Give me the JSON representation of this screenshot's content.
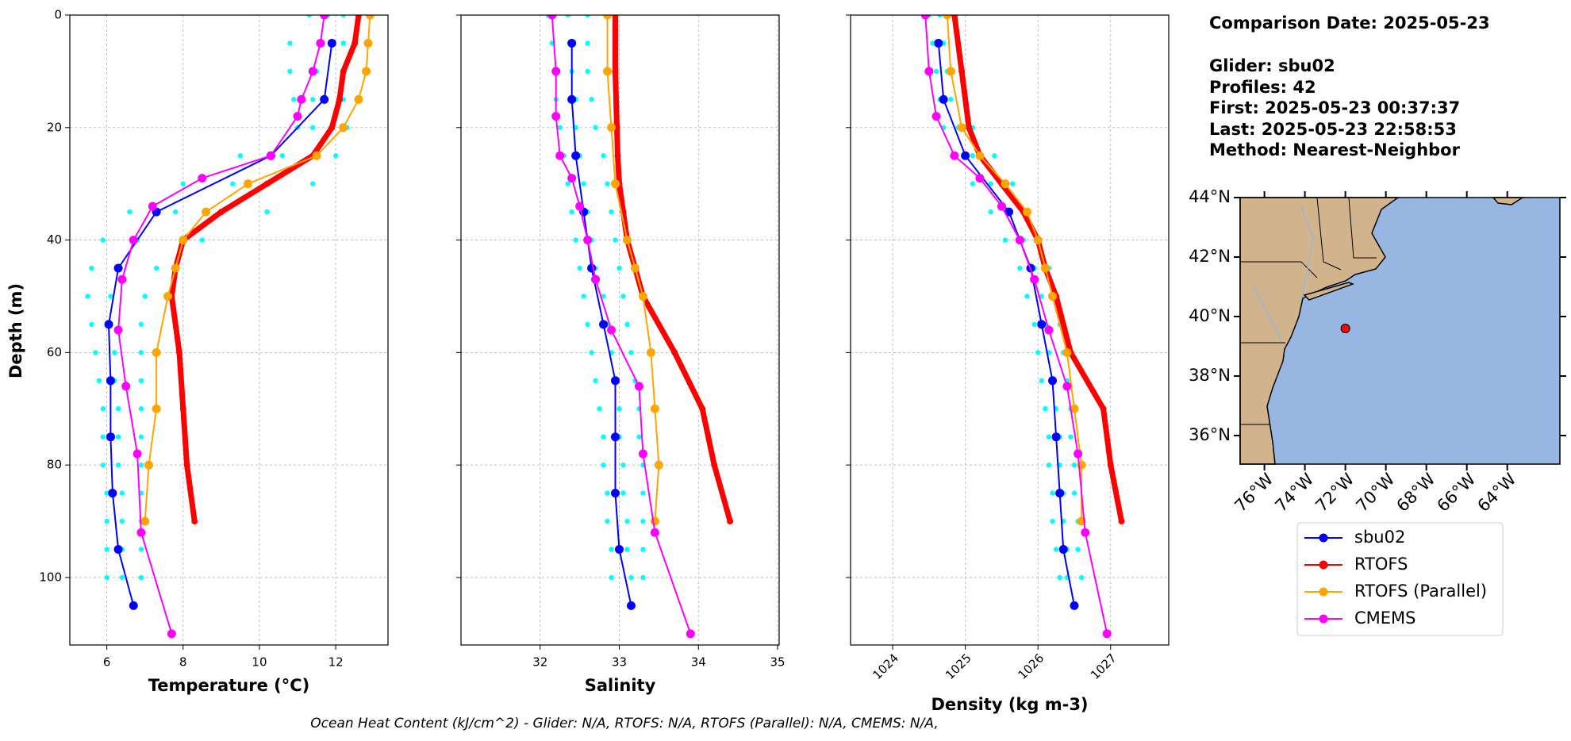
{
  "chart_data": [
    {
      "type": "profile",
      "xlabel": "Temperature (°C)",
      "ylabel": "Depth (m)",
      "xlim": [
        5.03,
        13.37
      ],
      "xticks": [
        6,
        8,
        10,
        12
      ],
      "ylim": [
        112,
        0
      ],
      "yticks": [
        0,
        20,
        40,
        60,
        80,
        100
      ],
      "grid": true,
      "profiles": {
        "color": "#00ffff",
        "depth": [
          0,
          5,
          10,
          15,
          20,
          25,
          30,
          35,
          40,
          45,
          50,
          55,
          60,
          65,
          70,
          75,
          80,
          85,
          90,
          95,
          100
        ],
        "values": [
          [
            11.3,
            10.8,
            10.8,
            10.9,
            11.0,
            9.5,
            8.0,
            6.6,
            5.9,
            5.6,
            5.5,
            5.6,
            5.7,
            5.8,
            5.9,
            5.9,
            5.9,
            6.0,
            6.0,
            6.0,
            6.0
          ],
          [
            11.8,
            11.6,
            11.5,
            11.4,
            11.4,
            10.6,
            9.3,
            7.8,
            6.8,
            6.3,
            6.1,
            6.1,
            6.2,
            6.2,
            6.3,
            6.3,
            6.3,
            6.4,
            6.4,
            6.4,
            6.4
          ],
          [
            12.2,
            12.2,
            12.2,
            12.2,
            12.3,
            12.0,
            11.4,
            10.2,
            8.5,
            7.3,
            7.0,
            6.9,
            6.9,
            6.9,
            6.9,
            6.9,
            6.9,
            6.9,
            6.9,
            6.9,
            6.9
          ]
        ]
      },
      "series": [
        {
          "name": "sbu02",
          "color": "#0000ff",
          "depth": [
            5,
            15,
            25,
            35,
            45,
            55,
            65,
            75,
            85,
            95,
            105
          ],
          "values": [
            11.9,
            11.7,
            10.3,
            7.3,
            6.3,
            6.05,
            6.1,
            6.1,
            6.15,
            6.3,
            6.7
          ]
        },
        {
          "name": "RTOFS",
          "color": "#ff0000",
          "depth": [
            0,
            5,
            10,
            15,
            20,
            25,
            30,
            35,
            40,
            45,
            50,
            60,
            70,
            80,
            90
          ],
          "values": [
            12.6,
            12.5,
            12.2,
            12.1,
            11.9,
            11.4,
            10.2,
            9.0,
            8.0,
            7.8,
            7.7,
            7.9,
            8.0,
            8.1,
            8.3
          ]
        },
        {
          "name": "RTOFS (Parallel)",
          "color": "#ffa500",
          "depth": [
            0,
            5,
            10,
            15,
            20,
            25,
            30,
            35,
            40,
            45,
            50,
            60,
            70,
            80,
            90
          ],
          "values": [
            12.9,
            12.85,
            12.8,
            12.6,
            12.2,
            11.5,
            9.7,
            8.6,
            8.0,
            7.8,
            7.6,
            7.3,
            7.3,
            7.1,
            7.0
          ]
        },
        {
          "name": "CMEMS",
          "color": "#ff00ff",
          "depth": [
            0,
            5,
            10,
            15,
            18,
            25,
            29,
            34,
            40,
            47,
            56,
            66,
            78,
            92,
            110
          ],
          "values": [
            11.7,
            11.6,
            11.4,
            11.1,
            11.0,
            10.3,
            8.5,
            7.2,
            6.7,
            6.4,
            6.3,
            6.5,
            6.8,
            6.9,
            7.7
          ]
        }
      ]
    },
    {
      "type": "profile",
      "xlabel": "Salinity",
      "xlim": [
        31.0,
        35.02
      ],
      "xticks": [
        32,
        33,
        34,
        35
      ],
      "ylim": [
        112,
        0
      ],
      "yticks": [
        0,
        20,
        40,
        60,
        80,
        100
      ],
      "grid": true,
      "profiles": {
        "color": "#00ffff",
        "depth": [
          0,
          5,
          10,
          15,
          20,
          25,
          30,
          35,
          40,
          45,
          50,
          55,
          60,
          65,
          70,
          75,
          80,
          85,
          90,
          95,
          100
        ],
        "values": [
          [
            32.1,
            32.15,
            32.2,
            32.2,
            32.25,
            32.3,
            32.35,
            32.4,
            32.45,
            32.5,
            32.55,
            32.6,
            32.65,
            32.7,
            32.75,
            32.8,
            32.8,
            32.85,
            32.85,
            32.9,
            32.9
          ],
          [
            32.35,
            32.4,
            32.4,
            32.45,
            32.45,
            32.5,
            32.55,
            32.6,
            32.65,
            32.7,
            32.8,
            32.85,
            32.9,
            32.95,
            33.0,
            33.0,
            33.05,
            33.05,
            33.1,
            33.1,
            33.15
          ],
          [
            32.6,
            32.6,
            32.6,
            32.65,
            32.7,
            32.8,
            32.85,
            32.9,
            32.95,
            33.0,
            33.05,
            33.1,
            33.15,
            33.2,
            33.25,
            33.25,
            33.3,
            33.3,
            33.3,
            33.3,
            33.3
          ]
        ]
      },
      "series": [
        {
          "name": "sbu02",
          "color": "#0000ff",
          "depth": [
            5,
            15,
            25,
            35,
            45,
            55,
            65,
            75,
            85,
            95,
            105
          ],
          "values": [
            32.4,
            32.4,
            32.45,
            32.55,
            32.65,
            32.8,
            32.95,
            32.95,
            32.95,
            33.0,
            33.15
          ]
        },
        {
          "name": "RTOFS",
          "color": "#ff0000",
          "depth": [
            0,
            10,
            20,
            25,
            30,
            35,
            40,
            45,
            50,
            60,
            70,
            80,
            90
          ],
          "values": [
            32.95,
            32.95,
            32.97,
            32.98,
            33.0,
            33.05,
            33.1,
            33.2,
            33.3,
            33.7,
            34.05,
            34.2,
            34.4
          ]
        },
        {
          "name": "RTOFS (Parallel)",
          "color": "#ffa500",
          "depth": [
            0,
            10,
            20,
            30,
            40,
            45,
            50,
            60,
            70,
            80,
            90
          ],
          "values": [
            32.85,
            32.85,
            32.9,
            32.95,
            33.1,
            33.2,
            33.3,
            33.4,
            33.45,
            33.5,
            33.45
          ]
        },
        {
          "name": "CMEMS",
          "color": "#ff00ff",
          "depth": [
            0,
            10,
            18,
            25,
            29,
            34,
            40,
            47,
            56,
            66,
            78,
            92,
            110
          ],
          "values": [
            32.15,
            32.2,
            32.2,
            32.25,
            32.4,
            32.5,
            32.6,
            32.7,
            32.9,
            33.25,
            33.3,
            33.45,
            33.9
          ]
        }
      ]
    },
    {
      "type": "profile",
      "xlabel": "Density (kg m-3)",
      "xtick_rotation": 45,
      "xlim": [
        1023.42,
        1027.8
      ],
      "xticks": [
        1024,
        1025,
        1026,
        1027
      ],
      "ylim": [
        112,
        0
      ],
      "yticks": [
        0,
        20,
        40,
        60,
        80,
        100
      ],
      "grid": true,
      "profiles": {
        "color": "#00ffff",
        "depth": [
          0,
          5,
          10,
          15,
          20,
          25,
          30,
          35,
          40,
          45,
          50,
          55,
          60,
          65,
          70,
          75,
          80,
          85,
          90,
          95,
          100
        ],
        "values": [
          [
            1024.5,
            1024.55,
            1024.6,
            1024.65,
            1024.7,
            1024.85,
            1025.1,
            1025.35,
            1025.55,
            1025.75,
            1025.85,
            1025.95,
            1026.0,
            1026.05,
            1026.1,
            1026.15,
            1026.15,
            1026.2,
            1026.2,
            1026.25,
            1026.3
          ],
          [
            1024.65,
            1024.7,
            1024.75,
            1024.8,
            1024.9,
            1025.1,
            1025.35,
            1025.6,
            1025.8,
            1025.95,
            1026.05,
            1026.1,
            1026.15,
            1026.2,
            1026.25,
            1026.3,
            1026.3,
            1026.35,
            1026.35,
            1026.4,
            1026.4
          ],
          [
            1024.85,
            1024.9,
            1024.95,
            1025.0,
            1025.1,
            1025.4,
            1025.65,
            1025.85,
            1026.0,
            1026.15,
            1026.25,
            1026.3,
            1026.35,
            1026.4,
            1026.45,
            1026.45,
            1026.5,
            1026.5,
            1026.55,
            1026.55,
            1026.6
          ]
        ]
      },
      "series": [
        {
          "name": "sbu02",
          "color": "#0000ff",
          "depth": [
            5,
            15,
            25,
            35,
            45,
            55,
            65,
            75,
            85,
            95,
            105
          ],
          "values": [
            1024.63,
            1024.7,
            1025.0,
            1025.6,
            1025.9,
            1026.05,
            1026.2,
            1026.25,
            1026.3,
            1026.35,
            1026.5
          ]
        },
        {
          "name": "RTOFS",
          "color": "#ff0000",
          "depth": [
            0,
            10,
            20,
            25,
            30,
            35,
            40,
            45,
            50,
            60,
            70,
            80,
            90
          ],
          "values": [
            1024.85,
            1024.95,
            1025.05,
            1025.2,
            1025.5,
            1025.8,
            1026.0,
            1026.1,
            1026.25,
            1026.45,
            1026.9,
            1027.0,
            1027.15
          ]
        },
        {
          "name": "RTOFS (Parallel)",
          "color": "#ffa500",
          "depth": [
            0,
            10,
            20,
            25,
            30,
            35,
            40,
            45,
            50,
            60,
            70,
            80,
            90
          ],
          "values": [
            1024.75,
            1024.8,
            1024.95,
            1025.2,
            1025.55,
            1025.85,
            1026.0,
            1026.1,
            1026.2,
            1026.4,
            1026.5,
            1026.6,
            1026.6
          ]
        },
        {
          "name": "CMEMS",
          "color": "#ff00ff",
          "depth": [
            0,
            10,
            18,
            25,
            29,
            34,
            40,
            47,
            56,
            66,
            78,
            92,
            110
          ],
          "values": [
            1024.45,
            1024.5,
            1024.6,
            1024.85,
            1025.2,
            1025.5,
            1025.75,
            1025.95,
            1026.15,
            1026.4,
            1026.55,
            1026.65,
            1026.95
          ]
        }
      ]
    }
  ],
  "info": [
    "Comparison Date: 2025-05-23",
    "Glider: sbu02",
    "Profiles: 42",
    "First: 2025-05-23 00:37:37",
    "Last: 2025-05-23 22:58:53",
    "Method: Nearest-Neighbor"
  ],
  "map": {
    "lon_range": [
      -77.2,
      -61.4
    ],
    "lat_range": [
      35.04,
      44
    ],
    "lat_ticks": [
      {
        "value": 44,
        "label": "44°N"
      },
      {
        "value": 42,
        "label": "42°N"
      },
      {
        "value": 40,
        "label": "40°N"
      },
      {
        "value": 38,
        "label": "38°N"
      },
      {
        "value": 36,
        "label": "36°N"
      }
    ],
    "lon_ticks": [
      {
        "value": -76,
        "label": "76°W"
      },
      {
        "value": -74,
        "label": "74°W"
      },
      {
        "value": -72,
        "label": "72°W"
      },
      {
        "value": -70,
        "label": "70°W"
      },
      {
        "value": -68,
        "label": "68°W"
      },
      {
        "value": -66,
        "label": "66°W"
      },
      {
        "value": -64,
        "label": "64°W"
      }
    ],
    "glider_position": {
      "lon": -72.0,
      "lat": 39.6,
      "color": "#ff0000"
    }
  },
  "footnote": "Ocean Heat Content (kJ/cm^2) - Glider: N/A,  RTOFS: N/A,  RTOFS (Parallel): N/A,  CMEMS: N/A,"
}
